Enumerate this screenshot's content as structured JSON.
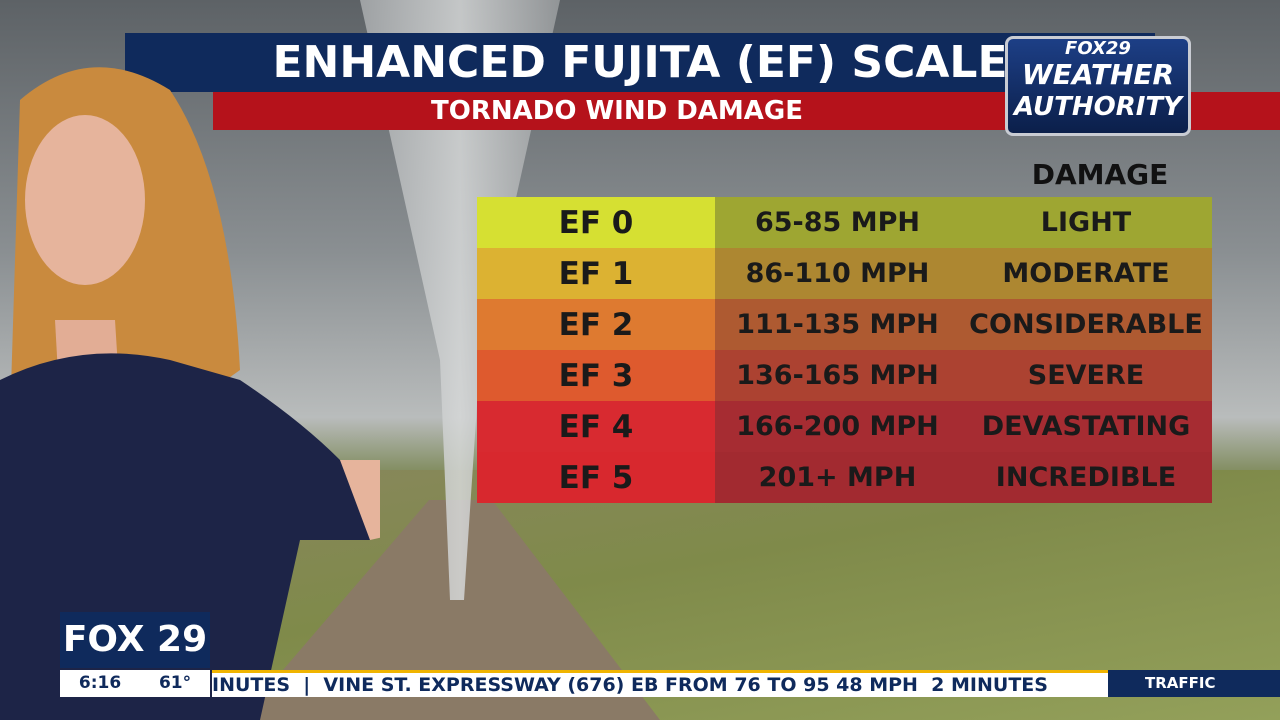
{
  "header": {
    "title": "ENHANCED FUJITA (EF) SCALE",
    "subtitle": "TORNADO WIND DAMAGE"
  },
  "logo": {
    "brand": "FOX29",
    "line1": "WEATHER",
    "line2": "AUTHORITY"
  },
  "table": {
    "header": "DAMAGE",
    "rows": [
      [
        "EF 0",
        "65-85 MPH",
        "LIGHT"
      ],
      [
        "EF 1",
        "86-110 MPH",
        "MODERATE"
      ],
      [
        "EF 2",
        "111-135 MPH",
        "CONSIDERABLE"
      ],
      [
        "EF 3",
        "136-165 MPH",
        "SEVERE"
      ],
      [
        "EF 4",
        "166-200 MPH",
        "DEVASTATING"
      ],
      [
        "EF 5",
        "201+ MPH",
        "INCREDIBLE"
      ]
    ]
  },
  "lower_third": {
    "channel": "FOX 29",
    "time": "6:16",
    "temperature": "61°",
    "ticker": "INUTES  |  VINE ST. EXPRESSWAY (676) EB FROM 76 TO 95 48 MPH  2 MINUTES",
    "segment": "TRAFFIC"
  }
}
